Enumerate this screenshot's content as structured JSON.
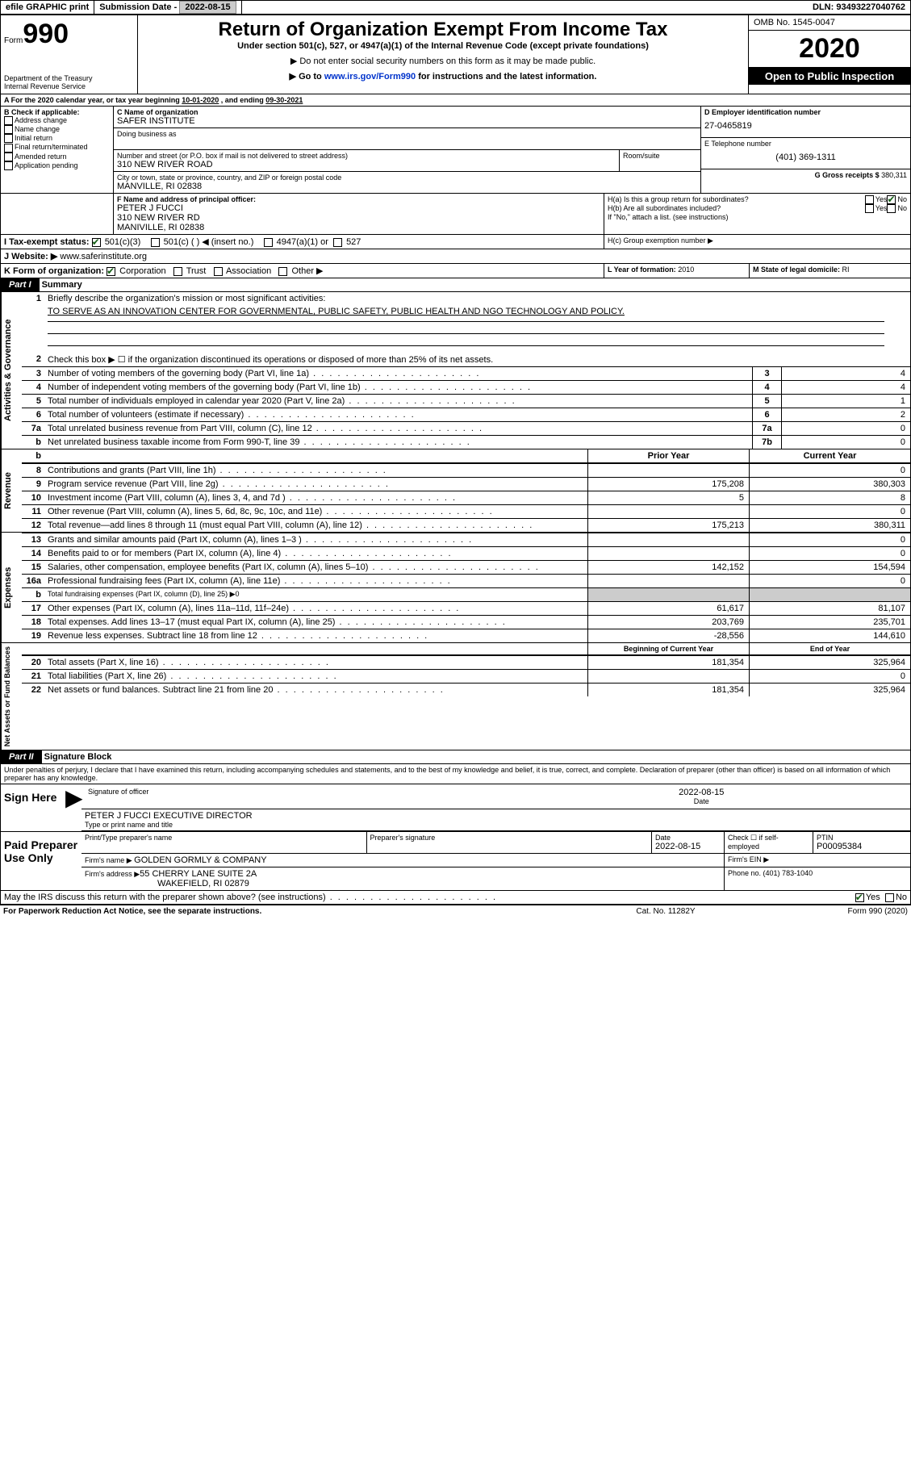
{
  "topbar": {
    "efile": "efile GRAPHIC print",
    "subdate_label": "Submission Date - ",
    "subdate": "2022-08-15",
    "dln_label": "DLN: ",
    "dln": "93493227040762"
  },
  "header": {
    "form_word": "Form",
    "form_no": "990",
    "dept": "Department of the Treasury\nInternal Revenue Service",
    "title": "Return of Organization Exempt From Income Tax",
    "sub1": "Under section 501(c), 527, or 4947(a)(1) of the Internal Revenue Code (except private foundations)",
    "sub2": "▶ Do not enter social security numbers on this form as it may be made public.",
    "sub3a": "▶ Go to ",
    "sub3_link": "www.irs.gov/Form990",
    "sub3b": " for instructions and the latest information.",
    "omb": "OMB No. 1545-0047",
    "year": "2020",
    "open": "Open to Public Inspection"
  },
  "A": {
    "prefix": "A For the 2020 calendar year, or tax year beginning ",
    "begin": "10-01-2020",
    "mid": " , and ending ",
    "end": "09-30-2021"
  },
  "B": {
    "heading": "B Check if applicable:",
    "opts": [
      "Address change",
      "Name change",
      "Initial return",
      "Final return/terminated",
      "Amended return",
      "Application pending"
    ]
  },
  "C": {
    "label": "C Name of organization",
    "org": "SAFER INSTITUTE",
    "dba_label": "Doing business as",
    "addr_label": "Number and street (or P.O. box if mail is not delivered to street address)",
    "room_label": "Room/suite",
    "addr": "310 NEW RIVER ROAD",
    "city_label": "City or town, state or province, country, and ZIP or foreign postal code",
    "city": "MANVILLE, RI  02838"
  },
  "D": {
    "label": "D Employer identification number",
    "ein": "27-0465819"
  },
  "E": {
    "label": "E Telephone number",
    "phone": "(401) 369-1311"
  },
  "G": {
    "label": "G Gross receipts $ ",
    "val": "380,311"
  },
  "F": {
    "label": "F Name and address of principal officer:",
    "name": "PETER J FUCCI",
    "addr1": "310 NEW RIVER RD",
    "addr2": "MANIVILLE, RI  02838"
  },
  "H": {
    "a": "H(a)  Is this a group return for subordinates?",
    "b": "H(b)  Are all subordinates included?",
    "ifno": "If \"No,\" attach a list. (see instructions)",
    "c": "H(c)  Group exemption number ▶",
    "yes": "Yes",
    "no": "No"
  },
  "I": {
    "label": "I  Tax-exempt status:",
    "o1": "501(c)(3)",
    "o2": "501(c) (  ) ◀ (insert no.)",
    "o3": "4947(a)(1) or",
    "o4": "527"
  },
  "J": {
    "label": "J  Website: ▶",
    "url": "www.saferinstitute.org"
  },
  "K": {
    "label": "K Form of organization:",
    "opts": [
      "Corporation",
      "Trust",
      "Association",
      "Other ▶"
    ]
  },
  "L": {
    "label": "L Year of formation: ",
    "val": "2010"
  },
  "M": {
    "label": "M State of legal domicile: ",
    "val": "RI"
  },
  "part1": {
    "label": "Part I",
    "title": "Summary"
  },
  "summary": {
    "sections": [
      {
        "name": "Activities & Governance",
        "rows": [
          {
            "n": "1",
            "d": "Briefly describe the organization's mission or most significant activities:",
            "mission": "TO SERVE AS AN INNOVATION CENTER FOR GOVERNMENTAL, PUBLIC SAFETY, PUBLIC HEALTH AND NGO TECHNOLOGY AND POLICY."
          },
          {
            "n": "2",
            "d": "Check this box ▶ ☐  if the organization discontinued its operations or disposed of more than 25% of its net assets."
          },
          {
            "n": "3",
            "d": "Number of voting members of the governing body (Part VI, line 1a)",
            "box": "3",
            "v": "4"
          },
          {
            "n": "4",
            "d": "Number of independent voting members of the governing body (Part VI, line 1b)",
            "box": "4",
            "v": "4"
          },
          {
            "n": "5",
            "d": "Total number of individuals employed in calendar year 2020 (Part V, line 2a)",
            "box": "5",
            "v": "1"
          },
          {
            "n": "6",
            "d": "Total number of volunteers (estimate if necessary)",
            "box": "6",
            "v": "2"
          },
          {
            "n": "7a",
            "d": "Total unrelated business revenue from Part VIII, column (C), line 12",
            "box": "7a",
            "v": "0"
          },
          {
            "n": "b",
            "d": "Net unrelated business taxable income from Form 990-T, line 39",
            "box": "7b",
            "v": "0"
          }
        ]
      },
      {
        "name": "Revenue",
        "header": [
          "Prior Year",
          "Current Year"
        ],
        "rows": [
          {
            "n": "8",
            "d": "Contributions and grants (Part VIII, line 1h)",
            "p": "",
            "c": "0"
          },
          {
            "n": "9",
            "d": "Program service revenue (Part VIII, line 2g)",
            "p": "175,208",
            "c": "380,303"
          },
          {
            "n": "10",
            "d": "Investment income (Part VIII, column (A), lines 3, 4, and 7d )",
            "p": "5",
            "c": "8"
          },
          {
            "n": "11",
            "d": "Other revenue (Part VIII, column (A), lines 5, 6d, 8c, 9c, 10c, and 11e)",
            "p": "",
            "c": "0"
          },
          {
            "n": "12",
            "d": "Total revenue—add lines 8 through 11 (must equal Part VIII, column (A), line 12)",
            "p": "175,213",
            "c": "380,311"
          }
        ]
      },
      {
        "name": "Expenses",
        "rows": [
          {
            "n": "13",
            "d": "Grants and similar amounts paid (Part IX, column (A), lines 1–3 )",
            "p": "",
            "c": "0"
          },
          {
            "n": "14",
            "d": "Benefits paid to or for members (Part IX, column (A), line 4)",
            "p": "",
            "c": "0"
          },
          {
            "n": "15",
            "d": "Salaries, other compensation, employee benefits (Part IX, column (A), lines 5–10)",
            "p": "142,152",
            "c": "154,594"
          },
          {
            "n": "16a",
            "d": "Professional fundraising fees (Part IX, column (A), line 11e)",
            "p": "",
            "c": "0"
          },
          {
            "n": "b",
            "d": "Total fundraising expenses (Part IX, column (D), line 25) ▶0",
            "shade": true
          },
          {
            "n": "17",
            "d": "Other expenses (Part IX, column (A), lines 11a–11d, 11f–24e)",
            "p": "61,617",
            "c": "81,107"
          },
          {
            "n": "18",
            "d": "Total expenses. Add lines 13–17 (must equal Part IX, column (A), line 25)",
            "p": "203,769",
            "c": "235,701"
          },
          {
            "n": "19",
            "d": "Revenue less expenses. Subtract line 18 from line 12",
            "p": "-28,556",
            "c": "144,610"
          }
        ]
      },
      {
        "name": "Net Assets or Fund Balances",
        "header": [
          "Beginning of Current Year",
          "End of Year"
        ],
        "rows": [
          {
            "n": "20",
            "d": "Total assets (Part X, line 16)",
            "p": "181,354",
            "c": "325,964"
          },
          {
            "n": "21",
            "d": "Total liabilities (Part X, line 26)",
            "p": "",
            "c": "0"
          },
          {
            "n": "22",
            "d": "Net assets or fund balances. Subtract line 21 from line 20",
            "p": "181,354",
            "c": "325,964"
          }
        ]
      }
    ]
  },
  "part2": {
    "label": "Part II",
    "title": "Signature Block"
  },
  "declare": "Under penalties of perjury, I declare that I have examined this return, including accompanying schedules and statements, and to the best of my knowledge and belief, it is true, correct, and complete. Declaration of preparer (other than officer) is based on all information of which preparer has any knowledge.",
  "sign": {
    "here": "Sign Here",
    "sig_label": "Signature of officer",
    "date": "2022-08-15",
    "date_label": "Date",
    "name": "PETER J FUCCI  EXECUTIVE DIRECTOR",
    "name_label": "Type or print name and title"
  },
  "preparer": {
    "title": "Paid Preparer Use Only",
    "h1": "Print/Type preparer's name",
    "h2": "Preparer's signature",
    "h3": "Date",
    "date": "2022-08-15",
    "h4": "Check ☐  if self-employed",
    "h5": "PTIN",
    "ptin": "P00095384",
    "firm_label": "Firm's name     ▶ ",
    "firm": "GOLDEN GORMLY & COMPANY",
    "ein_label": "Firm's EIN ▶",
    "addr_label": "Firm's address ▶",
    "addr1": "55 CHERRY LANE SUITE 2A",
    "addr2": "WAKEFIELD, RI  02879",
    "phone_label": "Phone no. ",
    "phone": "(401) 783-1040"
  },
  "discuss": {
    "q": "May the IRS discuss this return with the preparer shown above? (see instructions)",
    "yes": "Yes",
    "no": "No"
  },
  "footer": {
    "l": "For Paperwork Reduction Act Notice, see the separate instructions.",
    "c": "Cat. No. 11282Y",
    "r": "Form 990 (2020)"
  }
}
